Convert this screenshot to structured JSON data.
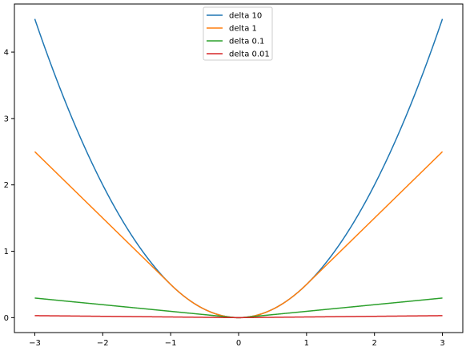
{
  "chart_data": {
    "type": "line",
    "title": "",
    "xlabel": "",
    "ylabel": "",
    "xlim": [
      -3.3,
      3.3
    ],
    "ylim": [
      -0.225,
      4.725
    ],
    "xticks": [
      -3,
      -2,
      -1,
      0,
      1,
      2,
      3
    ],
    "xtick_labels": [
      "−3",
      "−2",
      "−1",
      "0",
      "1",
      "2",
      "3"
    ],
    "yticks": [
      0,
      1,
      2,
      3,
      4
    ],
    "ytick_labels": [
      "0",
      "1",
      "2",
      "3",
      "4"
    ],
    "grid": false,
    "legend_position": "upper center",
    "function": "huber_loss",
    "x_range": [
      -3,
      3
    ],
    "series": [
      {
        "name": "delta 10",
        "delta": 10,
        "color": "#1f77b4"
      },
      {
        "name": "delta 1",
        "delta": 1,
        "color": "#ff7f0e"
      },
      {
        "name": "delta 0.1",
        "delta": 0.1,
        "color": "#2ca02c"
      },
      {
        "name": "delta 0.01",
        "delta": 0.01,
        "color": "#d62728"
      }
    ]
  }
}
